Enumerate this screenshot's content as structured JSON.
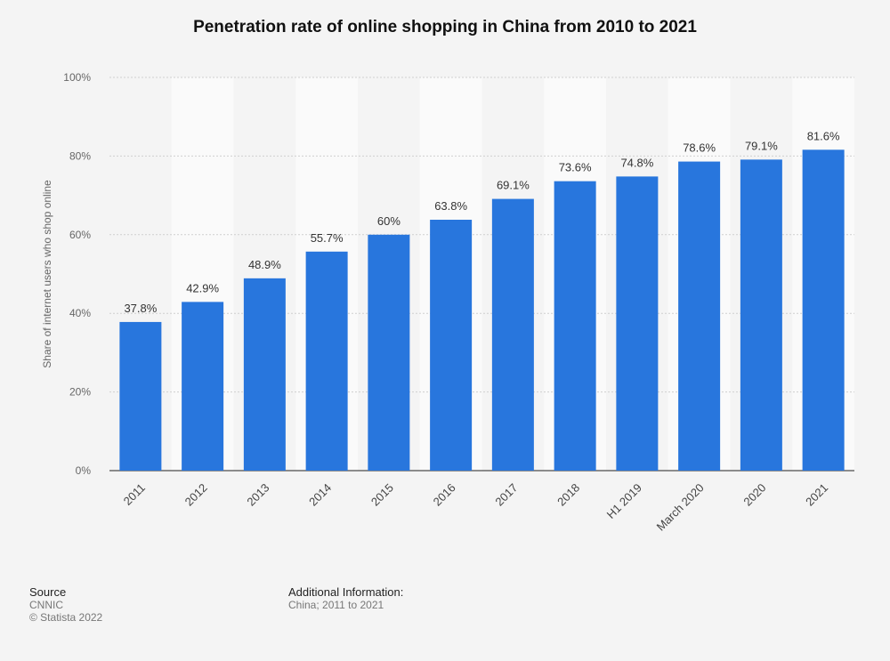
{
  "chart_data": {
    "type": "bar",
    "title": "Penetration rate of online shopping in China from 2010 to 2021",
    "xlabel": "",
    "ylabel": "Share of internet users who shop online",
    "categories": [
      "2011",
      "2012",
      "2013",
      "2014",
      "2015",
      "2016",
      "2017",
      "2018",
      "H1 2019",
      "March 2020",
      "2020",
      "2021"
    ],
    "values": [
      37.8,
      42.9,
      48.9,
      55.7,
      60,
      63.8,
      69.1,
      73.6,
      74.8,
      78.6,
      79.1,
      81.6
    ],
    "value_labels": [
      "37.8%",
      "42.9%",
      "48.9%",
      "55.7%",
      "60%",
      "63.8%",
      "69.1%",
      "73.6%",
      "74.8%",
      "78.6%",
      "79.1%",
      "81.6%"
    ],
    "yticks": [
      "0%",
      "20%",
      "40%",
      "60%",
      "80%",
      "100%"
    ],
    "ylim": [
      0,
      100
    ],
    "grid": true,
    "bar_color": "#2876dd"
  },
  "footer": {
    "source_heading": "Source",
    "source_name": "CNNIC",
    "copyright": "© Statista 2022",
    "info_heading": "Additional Information:",
    "info_text": "China; 2011 to 2021"
  }
}
